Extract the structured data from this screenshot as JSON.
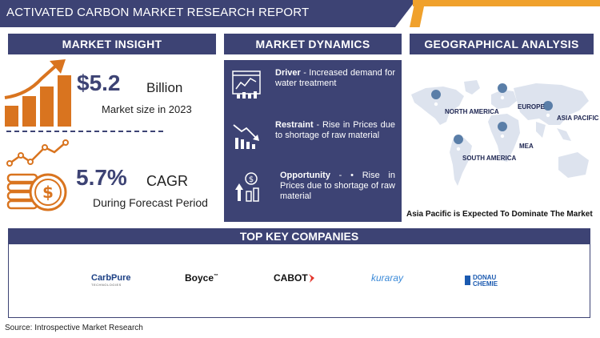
{
  "header": {
    "title": "ACTIVATED CARBON MARKET RESEARCH REPORT",
    "colors": {
      "primary": "#3d4374",
      "accent": "#f0a12c",
      "icon_orange": "#d9741f"
    }
  },
  "market_insight": {
    "heading": "MARKET INSIGHT",
    "market_size_value": "$5.2",
    "market_size_unit": "Billion",
    "market_size_caption": "Market size in 2023",
    "cagr_value": "5.7%",
    "cagr_unit": "CAGR",
    "cagr_caption": "During Forecast Period",
    "icons": [
      "growth-bar-chart-icon",
      "coin-stack-growth-icon"
    ]
  },
  "market_dynamics": {
    "heading": "MARKET DYNAMICS",
    "items": [
      {
        "label": "Driver",
        "separator": " - ",
        "text": "Increased demand for water treatment",
        "icon": "dashboard-chart-icon"
      },
      {
        "label": "Restraint",
        "separator": " - ",
        "text": "Rise in Prices due to shortage of raw material",
        "icon": "decline-chart-icon"
      },
      {
        "label": "Opportunity",
        "separator": " - • ",
        "text": "Rise in Prices due to shortage of raw material",
        "icon": "opportunity-growth-icon"
      }
    ]
  },
  "geography": {
    "heading": "GEOGRAPHICAL ANALYSIS",
    "regions": [
      "NORTH AMERICA",
      "EUROPE",
      "ASIA PACIFIC",
      "MEA",
      "SOUTH AMERICA"
    ],
    "caption": "Asia Pacific is Expected To Dominate The Market"
  },
  "companies": {
    "heading": "TOP KEY COMPANIES",
    "logos": [
      {
        "name": "CarbPure",
        "subtitle": "TECHNOLOGIES"
      },
      {
        "name": "Boyce",
        "superscript": "™"
      },
      {
        "name": "CABOT"
      },
      {
        "name": "kuraray"
      },
      {
        "name_line1": "DONAU",
        "name_line2": "CHEMIE"
      }
    ]
  },
  "source": "Source: Introspective Market Research"
}
